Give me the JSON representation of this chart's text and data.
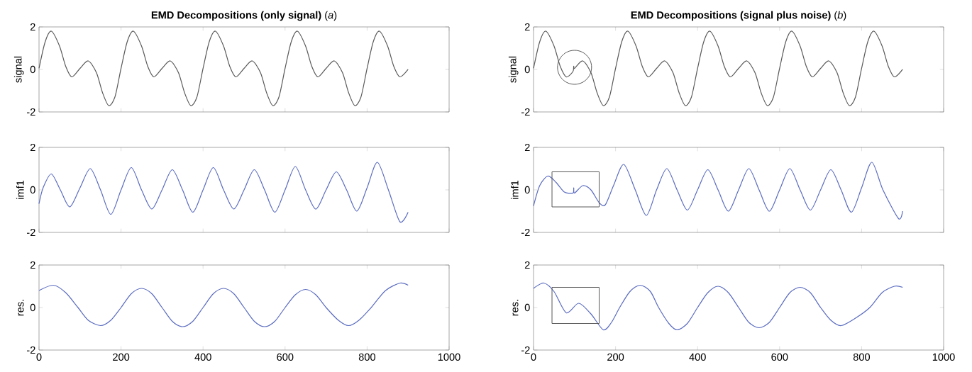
{
  "chart_data": [
    {
      "type": "line",
      "title": "**EMD Decompositions (only signal)**  (*a*)",
      "ylabel": "signal",
      "xlim": [
        0,
        1000
      ],
      "ylim": [
        -2,
        2
      ],
      "xticks": [
        0,
        200,
        400,
        600,
        800,
        1000
      ],
      "yticks": [
        -2,
        0,
        2
      ],
      "tick_labels": "y",
      "x": [
        0,
        15,
        30,
        50,
        65,
        80,
        100,
        120,
        140,
        155,
        170,
        185,
        200,
        215,
        230,
        250,
        265,
        280,
        300,
        320,
        340,
        355,
        370,
        385,
        400,
        415,
        430,
        450,
        465,
        480,
        500,
        520,
        540,
        555,
        570,
        585,
        600,
        615,
        630,
        650,
        665,
        680,
        700,
        720,
        740,
        755,
        770,
        785,
        800,
        815,
        830,
        850,
        865,
        880,
        900
      ],
      "series": [
        {
          "color": "#5a5a5a",
          "values": [
            0.05,
            1.3,
            1.8,
            1.1,
            0.15,
            -0.35,
            0.05,
            0.4,
            -0.15,
            -1.1,
            -1.7,
            -1.3,
            0.05,
            1.3,
            1.8,
            1.1,
            0.15,
            -0.35,
            0.05,
            0.4,
            -0.15,
            -1.1,
            -1.7,
            -1.3,
            0.05,
            1.3,
            1.8,
            1.1,
            0.15,
            -0.35,
            0.05,
            0.4,
            -0.15,
            -1.1,
            -1.7,
            -1.3,
            0.05,
            1.3,
            1.8,
            1.1,
            0.15,
            -0.35,
            0.05,
            0.4,
            -0.15,
            -1.1,
            -1.7,
            -1.3,
            0.05,
            1.3,
            1.8,
            1.1,
            0.15,
            -0.35,
            0.0
          ]
        }
      ]
    },
    {
      "type": "line",
      "ylabel": "imf1",
      "xlim": [
        0,
        1000
      ],
      "ylim": [
        -2,
        2
      ],
      "xticks": [
        0,
        200,
        400,
        600,
        800,
        1000
      ],
      "yticks": [
        -2,
        0,
        2
      ],
      "tick_labels": "y",
      "x": [
        0,
        10,
        30,
        52,
        75,
        100,
        125,
        150,
        175,
        200,
        225,
        250,
        275,
        300,
        325,
        350,
        375,
        400,
        425,
        450,
        475,
        500,
        525,
        550,
        575,
        600,
        625,
        650,
        675,
        700,
        725,
        750,
        775,
        800,
        825,
        852,
        880,
        900
      ],
      "series": [
        {
          "color": "#5b6cc0",
          "values": [
            -0.65,
            0.1,
            0.75,
            0,
            -0.8,
            0.1,
            1.0,
            0,
            -1.15,
            0,
            1.05,
            0,
            -0.9,
            0,
            0.95,
            0,
            -1.05,
            0,
            1.05,
            0,
            -0.9,
            0,
            0.95,
            0,
            -1.05,
            0,
            1.1,
            0,
            -0.9,
            0,
            0.85,
            0,
            -1.0,
            0.1,
            1.3,
            0,
            -1.5,
            -1.05
          ]
        }
      ]
    },
    {
      "type": "line",
      "ylabel": "res.",
      "xlim": [
        0,
        1000
      ],
      "ylim": [
        -2,
        2
      ],
      "xticks": [
        0,
        200,
        400,
        600,
        800,
        1000
      ],
      "yticks": [
        -2,
        0,
        2
      ],
      "x": [
        0,
        35,
        65,
        95,
        120,
        150,
        175,
        200,
        225,
        250,
        275,
        300,
        325,
        350,
        375,
        400,
        425,
        450,
        475,
        500,
        525,
        550,
        575,
        600,
        625,
        650,
        675,
        700,
        730,
        755,
        780,
        810,
        845,
        880,
        900
      ],
      "series": [
        {
          "color": "#5b6cc0",
          "values": [
            0.8,
            1.05,
            0.7,
            0,
            -0.6,
            -0.85,
            -0.6,
            0,
            0.65,
            0.9,
            0.65,
            0,
            -0.65,
            -0.9,
            -0.65,
            0,
            0.65,
            0.9,
            0.65,
            0,
            -0.65,
            -0.9,
            -0.65,
            0,
            0.6,
            0.85,
            0.6,
            0,
            -0.6,
            -0.85,
            -0.6,
            0,
            0.8,
            1.15,
            1.05
          ]
        }
      ]
    },
    {
      "type": "line",
      "title": "**EMD Decompositions (signal plus noise)**  (*b*)",
      "ylabel": "signal",
      "xlim": [
        0,
        1000
      ],
      "ylim": [
        -2,
        2
      ],
      "xticks": [
        0,
        200,
        400,
        600,
        800,
        1000
      ],
      "yticks": [
        -2,
        0,
        2
      ],
      "tick_labels": "y",
      "x": [
        0,
        15,
        30,
        50,
        65,
        80,
        96,
        98,
        100,
        120,
        140,
        155,
        170,
        185,
        200,
        215,
        230,
        250,
        265,
        280,
        300,
        320,
        340,
        355,
        370,
        385,
        400,
        415,
        430,
        450,
        465,
        480,
        500,
        520,
        540,
        555,
        570,
        585,
        600,
        615,
        630,
        650,
        665,
        680,
        700,
        720,
        740,
        755,
        770,
        785,
        800,
        815,
        830,
        850,
        865,
        880,
        900
      ],
      "series": [
        {
          "color": "#5a5a5a",
          "values": [
            0.05,
            1.3,
            1.8,
            1.1,
            0.15,
            -0.35,
            -0.1,
            0.15,
            0.05,
            0.4,
            -0.15,
            -1.1,
            -1.7,
            -1.3,
            0.05,
            1.3,
            1.8,
            1.1,
            0.15,
            -0.35,
            0.05,
            0.4,
            -0.15,
            -1.1,
            -1.7,
            -1.3,
            0.05,
            1.3,
            1.8,
            1.1,
            0.15,
            -0.35,
            0.05,
            0.4,
            -0.15,
            -1.1,
            -1.7,
            -1.3,
            0.05,
            1.3,
            1.8,
            1.1,
            0.15,
            -0.35,
            0.05,
            0.4,
            -0.15,
            -1.1,
            -1.7,
            -1.3,
            0.05,
            1.3,
            1.8,
            1.1,
            0.15,
            -0.35,
            0.0
          ]
        }
      ]
    },
    {
      "type": "line",
      "ylabel": "imf1",
      "xlim": [
        0,
        1000
      ],
      "ylim": [
        -2,
        2
      ],
      "xticks": [
        0,
        200,
        400,
        600,
        800,
        1000
      ],
      "yticks": [
        -2,
        0,
        2
      ],
      "tick_labels": "y",
      "x": [
        0,
        15,
        35,
        55,
        75,
        96,
        98,
        100,
        120,
        140,
        160,
        175,
        195,
        220,
        248,
        275,
        300,
        325,
        350,
        375,
        400,
        425,
        450,
        475,
        500,
        525,
        550,
        575,
        600,
        625,
        650,
        675,
        700,
        725,
        750,
        775,
        800,
        825,
        852,
        890,
        900
      ],
      "series": [
        {
          "color": "#5b6cc0",
          "values": [
            -0.75,
            0.2,
            0.65,
            0.35,
            -0.1,
            -0.15,
            0.1,
            -0.15,
            0.2,
            0.0,
            -0.6,
            -0.7,
            0.2,
            1.2,
            0,
            -1.2,
            0,
            1.0,
            0,
            -0.95,
            0,
            0.95,
            0,
            -1.0,
            0,
            1.0,
            0,
            -1.0,
            0,
            1.0,
            0,
            -0.95,
            0,
            0.95,
            0,
            -1.05,
            0.1,
            1.3,
            0,
            -1.35,
            -1.0
          ]
        }
      ]
    },
    {
      "type": "line",
      "ylabel": "res.",
      "xlim": [
        0,
        1000
      ],
      "ylim": [
        -2,
        2
      ],
      "xticks": [
        0,
        200,
        400,
        600,
        800,
        1000
      ],
      "yticks": [
        -2,
        0,
        2
      ],
      "x": [
        0,
        25,
        50,
        80,
        110,
        140,
        170,
        190,
        210,
        235,
        260,
        285,
        305,
        330,
        350,
        375,
        400,
        425,
        450,
        475,
        500,
        525,
        550,
        575,
        600,
        625,
        650,
        675,
        700,
        725,
        750,
        785,
        820,
        850,
        880,
        900
      ],
      "series": [
        {
          "color": "#5b6cc0",
          "values": [
            0.9,
            1.15,
            0.75,
            -0.25,
            0.2,
            -0.3,
            -1.05,
            -0.7,
            0,
            0.75,
            1.05,
            0.75,
            0,
            -0.75,
            -1.05,
            -0.75,
            0,
            0.7,
            1.0,
            0.7,
            0,
            -0.7,
            -0.95,
            -0.7,
            0,
            0.7,
            0.95,
            0.7,
            0,
            -0.6,
            -0.85,
            -0.5,
            0,
            0.7,
            1.0,
            0.95
          ]
        }
      ]
    }
  ]
}
